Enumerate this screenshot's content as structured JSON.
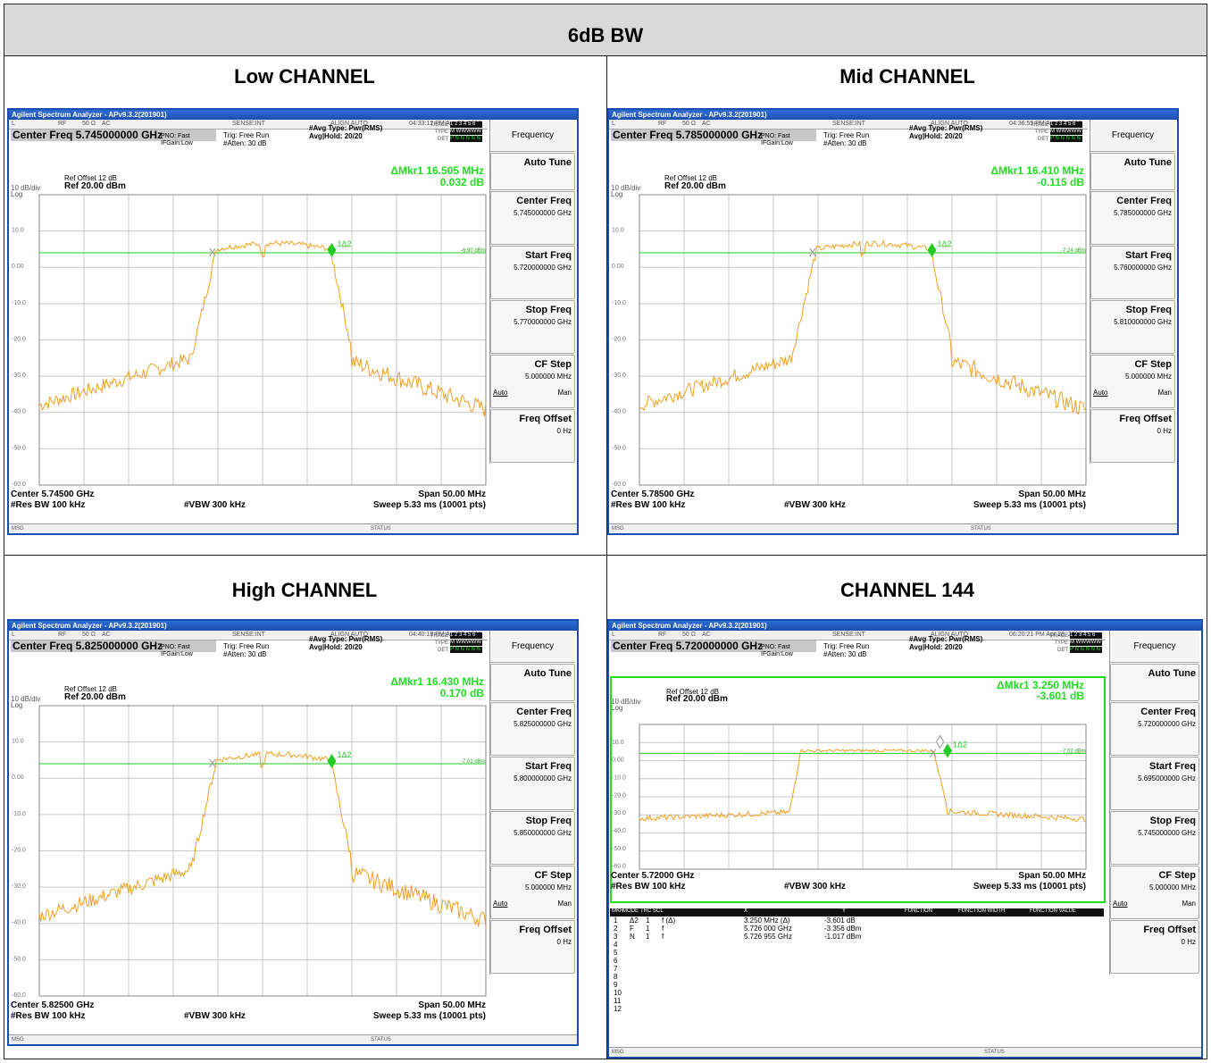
{
  "header": "6dB BW",
  "titles": [
    "Low CHANNEL",
    "Mid CHANNEL",
    "High CHANNEL",
    "CHANNEL 144"
  ],
  "win_title": "Agilent Spectrum Analyzer - APv9.3.2(201901)",
  "colors": {
    "trace": "#f0a020",
    "marker": "#22dd22",
    "grid": "#cccccc",
    "window": "#1b4fae"
  },
  "common": {
    "stat": [
      "L",
      "RF",
      "50 Ω",
      "AC",
      "SENSE:INT",
      "ALIGN AUTO"
    ],
    "pno": "PNO: Fast",
    "ifgain": "IFGain:Low",
    "trig": "Trig: Free Run",
    "atten": "#Atten: 30 dB",
    "avgtype": "#Avg Type: Pwr(RMS)",
    "avghold": "Avg|Hold: 20/20",
    "trace_lbls": [
      "TRACE",
      "TYPE",
      "DET"
    ],
    "trace_vals": [
      "1 2 3 4 5 6",
      "M WWWWW",
      "P N N N N N"
    ],
    "refoff": "Ref Offset 12 dB",
    "ref": "Ref 20.00 dBm",
    "div": "10 dB/div",
    "log": "Log",
    "ylabels": [
      "10.0",
      "0.00",
      "-10.0",
      "-20.0",
      "-30.0",
      "-40.0",
      "-50.0",
      "-60.0",
      "-70.0"
    ],
    "rbw": "#Res BW 100 kHz",
    "vbw": "#VBW 300 kHz",
    "span": "Span 50.00 MHz",
    "sweep": "Sweep  5.33 ms (10001 pts)",
    "msg": "MSG",
    "status": "STATUS",
    "menu_title": "Frequency",
    "auto_tune": "Auto Tune",
    "cf_label": "Center Freq",
    "start_label": "Start Freq",
    "stop_label": "Stop Freq",
    "cfstep_label": "CF Step",
    "cfstep_val": "5.000000 MHz",
    "auto": "Auto",
    "man": "Man",
    "foff_label": "Freq Offset",
    "foff_val": "0 Hz"
  },
  "screens": [
    {
      "time": "04:33:12 PM Apr 23, 2019",
      "cf": "Center Freq  5.745000000 GHz",
      "dmkr": "ΔMkr1 16.505 MHz",
      "dval": "0.032 dB",
      "cfv": "5.745000000 GHz",
      "start": "5.720000000 GHz",
      "stop": "5.770000000 GHz",
      "center": "Center 5.74500 GHz",
      "line": "-6.90 dBm",
      "marker_a": "X2",
      "marker_b": "1Δ2"
    },
    {
      "time": "04:36:55 PM Apr 23, 2019",
      "cf": "Center Freq  5.785000000 GHz",
      "dmkr": "ΔMkr1 16.410 MHz",
      "dval": "-0.115 dB",
      "cfv": "5.785000000 GHz",
      "start": "5.760000000 GHz",
      "stop": "5.810000000 GHz",
      "center": "Center 5.78500 GHz",
      "line": "-7.24 dBm",
      "marker_a": "X2",
      "marker_b": "1Δ2"
    },
    {
      "time": "04:40:18 PM Apr 23, 2019",
      "cf": "Center Freq  5.825000000 GHz",
      "dmkr": "ΔMkr1 16.430 MHz",
      "dval": "0.170 dB",
      "cfv": "5.825000000 GHz",
      "start": "5.800000000 GHz",
      "stop": "5.850000000 GHz",
      "center": "Center 5.82500 GHz",
      "line": "-7.01 dBm",
      "marker_a": "X2",
      "marker_b": "1Δ2"
    },
    {
      "time": "06:20:21 PM Apr 28, 2019",
      "cf": "Center Freq  5.720000000 GHz",
      "dmkr": "ΔMkr1 3.250 MHz",
      "dval": "-3.601 dB",
      "cfv": "5.720000000 GHz",
      "start": "5.695000000 GHz",
      "stop": "5.745000000 GHz",
      "center": "Center 5.72000 GHz",
      "line": "-7.02 dBm",
      "marker_a": "X2",
      "marker_b": "1Δ2",
      "marker_c": "3"
    }
  ],
  "marker_table": {
    "headers": [
      "MKR",
      "MODE",
      "TRC",
      "SCL",
      "X",
      "Y",
      "FUNCTION",
      "FUNCTION WIDTH",
      "FUNCTION VALUE"
    ],
    "rows": [
      [
        "1",
        "Δ2",
        "1",
        "f  (Δ)",
        "3.250 MHz  (Δ)",
        "-3.601 dB"
      ],
      [
        "2",
        "F",
        "1",
        "f",
        "5.726 000 GHz",
        "-3.356 dBm"
      ],
      [
        "3",
        "N",
        "1",
        "f",
        "5.726 955 GHz",
        "-1.017 dBm"
      ],
      [
        "4"
      ],
      [
        "5"
      ],
      [
        "6"
      ],
      [
        "7"
      ],
      [
        "8"
      ],
      [
        "9"
      ],
      [
        "10"
      ],
      [
        "11"
      ],
      [
        "12"
      ]
    ]
  }
}
